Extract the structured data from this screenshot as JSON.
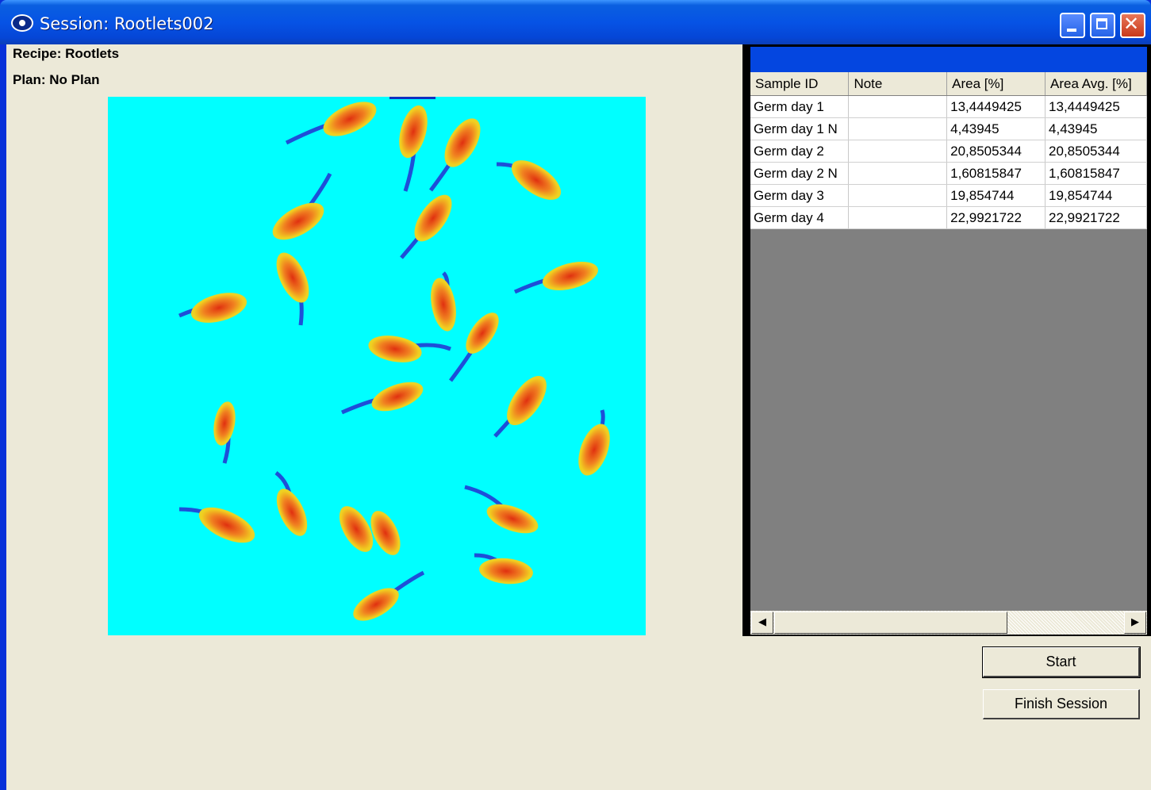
{
  "window": {
    "title": "Session: Rootlets002",
    "close_glyph": "✕"
  },
  "info": {
    "recipe": "Recipe: Rootlets",
    "plan": "Plan: No Plan"
  },
  "grid": {
    "columns": [
      "Sample ID",
      "Note",
      "Area [%]",
      "Area Avg. [%]"
    ],
    "rows": [
      [
        "Germ day 1",
        "",
        "13,4449425",
        "13,4449425"
      ],
      [
        "Germ day 1 N",
        "",
        "4,43945",
        "4,43945"
      ],
      [
        "Germ day 2",
        "",
        "20,8505344",
        "20,8505344"
      ],
      [
        "Germ day 2 N",
        "",
        "1,60815847",
        "1,60815847"
      ],
      [
        "Germ day 3",
        "",
        "19,854744",
        "19,854744"
      ],
      [
        "Germ day 4",
        "",
        "22,9921722",
        "22,9921722"
      ]
    ]
  },
  "scrollbar": {
    "left_arrow": "◀",
    "right_arrow": "▶"
  },
  "buttons": {
    "start": "Start",
    "finish": "Finish Session"
  }
}
